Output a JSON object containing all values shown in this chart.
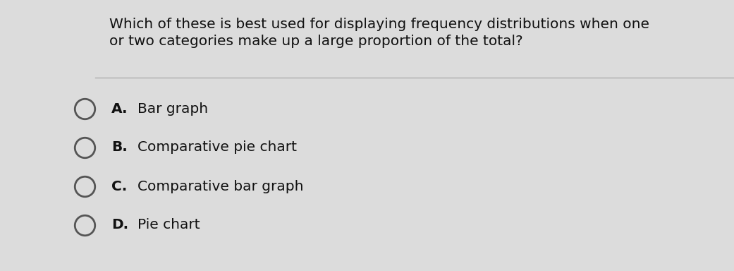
{
  "question_line1": "Which of these is best used for displaying frequency distributions when one",
  "question_line2": "or two categories make up a large proportion of the total?",
  "options": [
    {
      "label": "A.",
      "text": "Bar graph"
    },
    {
      "label": "B.",
      "text": "Comparative pie chart"
    },
    {
      "label": "C.",
      "text": "Comparative bar graph"
    },
    {
      "label": "D.",
      "text": "Pie chart"
    }
  ],
  "background_color": "#dcdcdc",
  "question_font_size": 14.5,
  "option_font_size": 14.5,
  "question_color": "#111111",
  "option_color": "#111111",
  "label_color": "#111111",
  "line_color": "#aaaaaa",
  "circle_edge_color": "#555555",
  "circle_face_color": "#dcdcdc"
}
